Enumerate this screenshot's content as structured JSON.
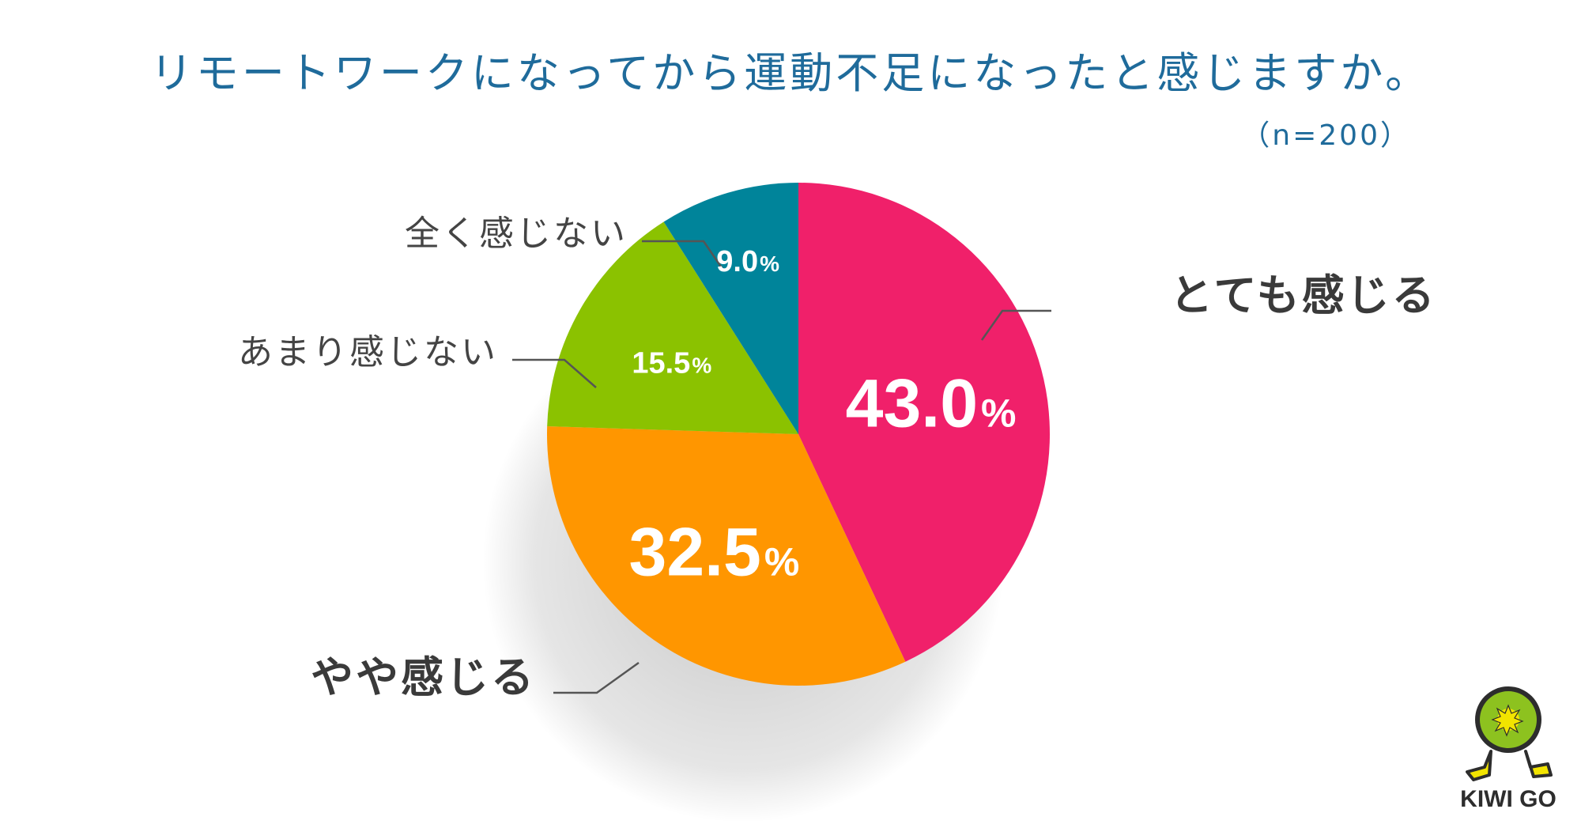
{
  "title": "リモートワークになってから運動不足になったと感じますか。",
  "sample_size": "（n=200）",
  "logo": {
    "text": "KIWI GO",
    "icon": "kiwi-character-icon",
    "colors": {
      "body": "#8dc21f",
      "seed": "#f2e400",
      "outline": "#2d2d2d"
    }
  },
  "chart_data": {
    "type": "pie",
    "title": "リモートワークになってから運動不足になったと感じますか。",
    "unit": "%",
    "start_angle_deg": 0,
    "direction": "clockwise",
    "slices": [
      {
        "label": "とても感じる",
        "value": 43.0,
        "value_label": "43.0",
        "color": "#f0206a",
        "label_emphasis": "bold",
        "value_size": "large"
      },
      {
        "label": "やや感じる",
        "value": 32.5,
        "value_label": "32.5",
        "color": "#ff9600",
        "label_emphasis": "bold",
        "value_size": "large"
      },
      {
        "label": "あまり感じない",
        "value": 15.5,
        "value_label": "15.5",
        "color": "#8bc200",
        "label_emphasis": "normal",
        "value_size": "small"
      },
      {
        "label": "全く感じない",
        "value": 9.0,
        "value_label": "9.0",
        "color": "#00849a",
        "label_emphasis": "normal",
        "value_size": "small"
      }
    ]
  }
}
